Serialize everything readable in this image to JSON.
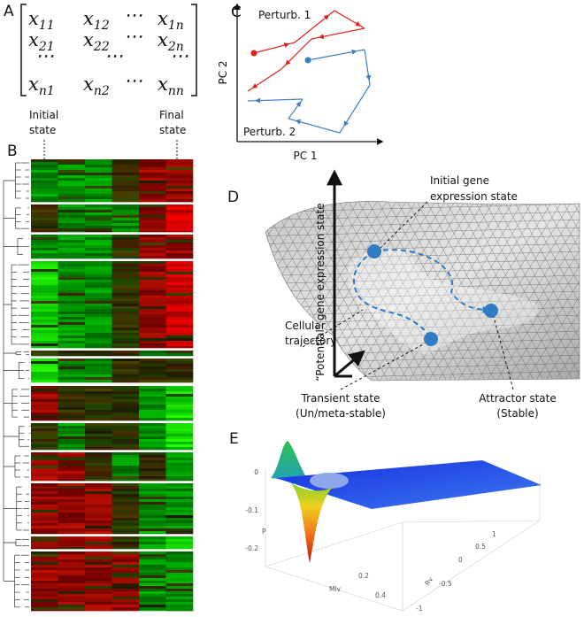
{
  "panels": {
    "A": {
      "label": "A",
      "matrix": {
        "rows": [
          [
            {
              "base": "x",
              "sub": "11"
            },
            {
              "base": "x",
              "sub": "12"
            },
            "⋯",
            {
              "base": "x",
              "sub": "1n"
            }
          ],
          [
            {
              "base": "x",
              "sub": "21"
            },
            {
              "base": "x",
              "sub": "22"
            },
            "⋯",
            {
              "base": "x",
              "sub": "2n"
            }
          ],
          [
            "⋯",
            "⋯",
            "⋯"
          ],
          [
            {
              "base": "x",
              "sub": "n1"
            },
            {
              "base": "x",
              "sub": "n2"
            },
            "⋯",
            {
              "base": "x",
              "sub": "nn"
            }
          ]
        ]
      }
    },
    "B": {
      "label": "B",
      "initial_state": [
        "Initial",
        "state"
      ],
      "final_state": [
        "Final",
        "state"
      ]
    },
    "C": {
      "label": "C",
      "perturb_1": "Perturb. 1",
      "perturb_2": "Perturb. 2",
      "x_axis": "PC 1",
      "y_axis": "PC 2"
    },
    "D": {
      "label": "D",
      "y_axis": "“Potential” gene expression state",
      "initial": [
        "Initial gene",
        "expression state"
      ],
      "trajectory": [
        "Cellular",
        "trajectory"
      ],
      "transient": [
        "Transient state",
        "(Un/meta-stable)"
      ],
      "attractor": [
        "Attractor state",
        "(Stable)"
      ]
    },
    "E": {
      "label": "E",
      "p_axis": "P",
      "p_ticks": [
        0,
        -0.1,
        -0.2
      ],
      "mlv_axis": "Mlv",
      "mlv_ticks": [
        0.2,
        0.4
      ],
      "rv_axis": "Rv",
      "rv_ticks": [
        1,
        0.5,
        0,
        -0.5,
        -1
      ]
    }
  }
}
